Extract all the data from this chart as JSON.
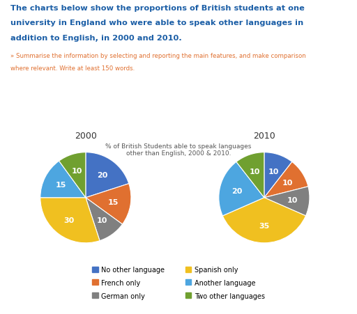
{
  "title_main_line1": "The charts below show the proportions of British students at one",
  "title_main_line2": "university in England who were able to speak other languages in",
  "title_main_line3": "addition to English, in 2000 and 2010.",
  "subtitle_line1": "» Summarise the information by selecting and reporting the main features, and make comparison",
  "subtitle_line2": "where relevant. Write at least 150 words.",
  "chart_title": "% of British Students able to speak languages\nother than English, 2000 & 2010.",
  "year_2000": "2000",
  "year_2010": "2010",
  "labels": [
    "No other language",
    "French only",
    "German only",
    "Spanish only",
    "Another language",
    "Two other languages"
  ],
  "colors": [
    "#4472C4",
    "#E07030",
    "#808080",
    "#F0C020",
    "#4DA6E0",
    "#70A030"
  ],
  "values_2000": [
    20,
    15,
    10,
    30,
    15,
    10
  ],
  "values_2010": [
    10,
    10,
    10,
    35,
    20,
    10
  ],
  "wedge_labels_2000": [
    "20",
    "15",
    "10",
    "30",
    "15",
    "10"
  ],
  "wedge_labels_2010": [
    "10",
    "10",
    "10",
    "35",
    "20",
    "10"
  ],
  "title_color": "#1B5EA6",
  "subtitle_color": "#E07030",
  "chart_title_color": "#555555",
  "background_color": "#FFFFFF"
}
